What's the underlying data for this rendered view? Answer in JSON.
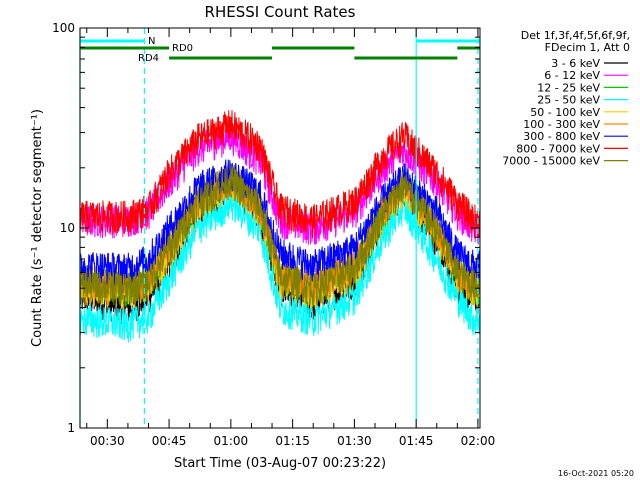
{
  "chart_data": {
    "type": "line",
    "title": "RHESSI Count Rates",
    "xlabel": "Start Time (03-Aug-07 00:23:22)",
    "ylabel": "Count Rate (s⁻¹ detector segment⁻¹)",
    "yscale": "log",
    "ylim": [
      1,
      100
    ],
    "xlim": [
      "00:23:22",
      "02:00:30"
    ],
    "x_ticks": [
      "00:30",
      "00:45",
      "01:00",
      "01:15",
      "01:30",
      "01:45",
      "02:00"
    ],
    "y_ticks": [
      "1",
      "10",
      "100"
    ],
    "legend": {
      "placement": "right",
      "header": [
        "Det 1f,3f,4f,5f,6f,9f,",
        "FDecim 1, Att 0"
      ]
    },
    "series": [
      {
        "name": "3 - 6 keV",
        "color": "#000000",
        "x": [
          "00:25",
          "00:35",
          "00:40",
          "00:45",
          "00:52",
          "01:00",
          "01:07",
          "01:12",
          "01:20",
          "01:30",
          "01:37",
          "01:42",
          "01:50",
          "01:55",
          "01:59"
        ],
        "values": [
          4.5,
          4.0,
          4.5,
          6.5,
          12.0,
          17.0,
          12.0,
          5.0,
          4.2,
          5.5,
          11.0,
          16.0,
          8.5,
          5.0,
          4.5
        ]
      },
      {
        "name": "6 - 12 keV",
        "color": "#ff00ff",
        "x": [
          "00:25",
          "00:35",
          "00:40",
          "00:45",
          "00:52",
          "01:00",
          "01:07",
          "01:12",
          "01:20",
          "01:30",
          "01:37",
          "01:42",
          "01:50",
          "01:55",
          "01:59"
        ],
        "values": [
          11.0,
          11.0,
          12.0,
          17.0,
          25.0,
          29.0,
          22.0,
          11.0,
          10.0,
          12.0,
          20.0,
          25.0,
          17.0,
          12.0,
          10.0
        ]
      },
      {
        "name": "12 - 25 keV",
        "color": "#00cc00",
        "x": [
          "00:25",
          "00:35",
          "00:40",
          "00:45",
          "00:52",
          "01:00",
          "01:07",
          "01:12",
          "01:20",
          "01:30",
          "01:37",
          "01:42",
          "01:50",
          "01:55",
          "01:59"
        ],
        "values": [
          5.5,
          5.0,
          5.5,
          8.0,
          14.0,
          18.0,
          13.0,
          5.5,
          5.0,
          6.5,
          12.0,
          17.0,
          10.0,
          6.0,
          5.0
        ]
      },
      {
        "name": "25 - 50 keV",
        "color": "#00ffff",
        "x": [
          "00:25",
          "00:35",
          "00:40",
          "00:45",
          "00:52",
          "01:00",
          "01:07",
          "01:12",
          "01:20",
          "01:30",
          "01:37",
          "01:42",
          "01:50",
          "01:55",
          "01:59"
        ],
        "values": [
          3.5,
          3.3,
          3.6,
          5.5,
          10.0,
          13.5,
          10.0,
          4.0,
          3.5,
          4.5,
          9.0,
          13.0,
          7.0,
          4.5,
          3.5
        ]
      },
      {
        "name": "50 - 100 keV",
        "color": "#ffcc00",
        "x": [
          "00:25",
          "00:35",
          "00:40",
          "00:45",
          "00:52",
          "01:00",
          "01:07",
          "01:12",
          "01:20",
          "01:30",
          "01:37",
          "01:42",
          "01:50",
          "01:55",
          "01:59"
        ],
        "values": [
          5.0,
          4.8,
          5.2,
          7.5,
          13.0,
          17.0,
          12.5,
          5.5,
          4.8,
          6.0,
          11.5,
          16.0,
          9.5,
          5.8,
          5.0
        ]
      },
      {
        "name": "100 - 300 keV",
        "color": "#ff8800",
        "x": [
          "00:25",
          "00:35",
          "00:40",
          "00:45",
          "00:52",
          "01:00",
          "01:07",
          "01:12",
          "01:20",
          "01:30",
          "01:37",
          "01:42",
          "01:50",
          "01:55",
          "01:59"
        ],
        "values": [
          5.5,
          5.2,
          5.6,
          8.0,
          14.0,
          18.0,
          13.0,
          6.0,
          5.2,
          6.5,
          12.5,
          17.0,
          10.0,
          6.2,
          5.4
        ]
      },
      {
        "name": "300 - 800 keV",
        "color": "#0000ff",
        "x": [
          "00:25",
          "00:35",
          "00:40",
          "00:45",
          "00:52",
          "01:00",
          "01:07",
          "01:12",
          "01:20",
          "01:30",
          "01:37",
          "01:42",
          "01:50",
          "01:55",
          "01:59"
        ],
        "values": [
          6.5,
          6.3,
          7.0,
          10.0,
          16.0,
          19.0,
          15.0,
          7.5,
          6.5,
          8.0,
          14.0,
          18.0,
          12.0,
          7.5,
          6.5
        ]
      },
      {
        "name": "800 - 7000 keV",
        "color": "#ff0000",
        "x": [
          "00:25",
          "00:35",
          "00:40",
          "00:45",
          "00:52",
          "01:00",
          "01:07",
          "01:12",
          "01:20",
          "01:30",
          "01:37",
          "01:42",
          "01:50",
          "01:55",
          "01:59"
        ],
        "values": [
          11.5,
          11.5,
          12.5,
          19.0,
          28.0,
          33.0,
          26.0,
          12.5,
          11.0,
          13.5,
          23.0,
          29.0,
          19.0,
          13.5,
          11.0
        ]
      },
      {
        "name": "7000 - 15000 keV",
        "color": "#808000",
        "x": [
          "00:25",
          "00:35",
          "00:40",
          "00:45",
          "00:52",
          "01:00",
          "01:07",
          "01:12",
          "01:20",
          "01:30",
          "01:37",
          "01:42",
          "01:50",
          "01:55",
          "01:59"
        ],
        "values": [
          5.2,
          5.0,
          5.4,
          7.8,
          13.5,
          17.5,
          12.8,
          5.8,
          5.0,
          6.2,
          12.0,
          16.5,
          9.8,
          6.0,
          5.2
        ]
      }
    ],
    "annotations": {
      "night_bars": {
        "label": "N",
        "color": "#00ffff",
        "spans": [
          [
            "00:23:22",
            "00:39"
          ],
          [
            "01:45",
            "02:00:30"
          ]
        ]
      },
      "rd0_bars": {
        "label": "RD0",
        "color": "#008000",
        "spans": [
          [
            "00:23:22",
            "00:45"
          ],
          [
            "01:10",
            "01:30"
          ],
          [
            "01:55",
            "02:00:30"
          ]
        ]
      },
      "rd4_bars": {
        "label": "RD4",
        "color": "#008000",
        "spans": [
          [
            "00:45",
            "01:10"
          ],
          [
            "01:30",
            "01:55"
          ]
        ]
      },
      "night_lines": {
        "color": "#00ffff",
        "solid": [
          "00:23:22",
          "01:45"
        ],
        "dashed": [
          "00:39",
          "02:00"
        ]
      }
    }
  },
  "footer": {
    "timestamp": "16-Oct-2021 05:20"
  }
}
